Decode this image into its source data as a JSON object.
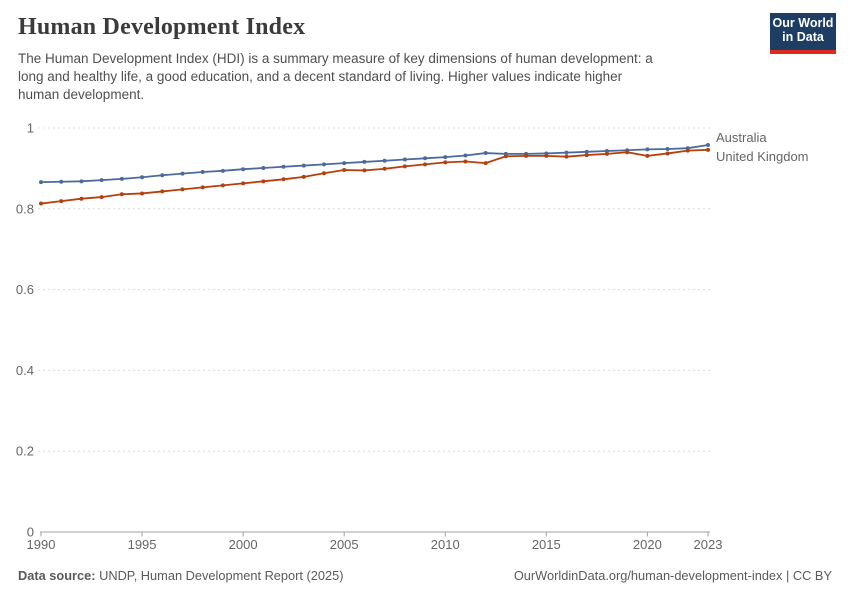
{
  "header": {
    "title": "Human Development Index",
    "subtitle": "The Human Development Index (HDI) is a summary measure of key dimensions of human development: a long and healthy life, a good education, and a decent standard of living. Higher values indicate higher human development.",
    "logo": {
      "line1": "Our World",
      "line2": "in Data",
      "bg_color": "#1d3d63",
      "accent_color": "#dc2a20"
    }
  },
  "chart_data": {
    "type": "line",
    "title": "Human Development Index",
    "xlabel": "",
    "ylabel": "",
    "xlim": [
      1990,
      2023
    ],
    "ylim": [
      0,
      1
    ],
    "grid": "horizontal-dashed",
    "legend_position": "right-of-line-ends",
    "x": [
      1990,
      1991,
      1992,
      1993,
      1994,
      1995,
      1996,
      1997,
      1998,
      1999,
      2000,
      2001,
      2002,
      2003,
      2004,
      2005,
      2006,
      2007,
      2008,
      2009,
      2010,
      2011,
      2012,
      2013,
      2014,
      2015,
      2016,
      2017,
      2018,
      2019,
      2020,
      2021,
      2022,
      2023
    ],
    "xticks": [
      1990,
      1995,
      2000,
      2005,
      2010,
      2015,
      2020,
      2023
    ],
    "xtick_labels": [
      "1990",
      "1995",
      "2000",
      "2005",
      "2010",
      "2015",
      "2020",
      "2023"
    ],
    "yticks": [
      0,
      0.2,
      0.4,
      0.6,
      0.8,
      1
    ],
    "ytick_labels": [
      "0",
      "0.2",
      "0.4",
      "0.6",
      "0.8",
      "1"
    ],
    "series": [
      {
        "name": "Australia",
        "color": "#4C6A9C",
        "values": [
          0.866,
          0.867,
          0.868,
          0.871,
          0.874,
          0.878,
          0.883,
          0.887,
          0.891,
          0.894,
          0.898,
          0.901,
          0.904,
          0.907,
          0.91,
          0.913,
          0.916,
          0.919,
          0.922,
          0.925,
          0.928,
          0.932,
          0.938,
          0.936,
          0.936,
          0.937,
          0.939,
          0.941,
          0.943,
          0.945,
          0.947,
          0.948,
          0.95,
          0.958
        ]
      },
      {
        "name": "United Kingdom",
        "color": "#B5400F",
        "values": [
          0.813,
          0.819,
          0.825,
          0.829,
          0.836,
          0.838,
          0.843,
          0.848,
          0.853,
          0.858,
          0.863,
          0.868,
          0.873,
          0.879,
          0.888,
          0.896,
          0.895,
          0.899,
          0.905,
          0.91,
          0.915,
          0.917,
          0.913,
          0.93,
          0.931,
          0.931,
          0.929,
          0.933,
          0.936,
          0.94,
          0.931,
          0.937,
          0.944,
          0.946
        ]
      }
    ],
    "axis_color": "#a1a1a1",
    "gridline_color": "#dcdcdc",
    "tick_label_color": "#666666"
  },
  "footer": {
    "source_label": "Data source:",
    "source_text": " UNDP, Human Development Report (2025)",
    "link_text": "OurWorldinData.org/human-development-index | CC BY"
  }
}
